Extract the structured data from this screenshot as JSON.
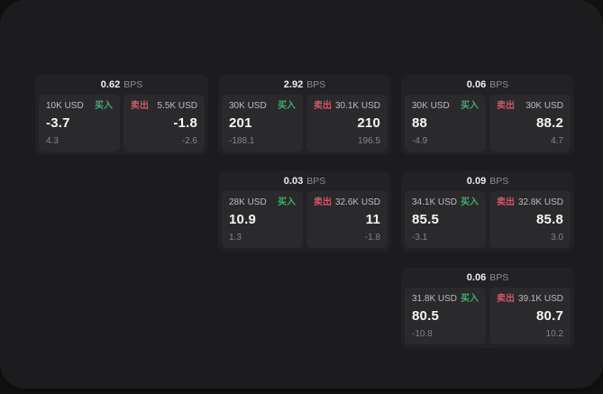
{
  "labels": {
    "bps_unit": "BPS",
    "buy": "买入",
    "sell": "卖出"
  },
  "colors": {
    "buy_accent": "#3fae6e",
    "sell_accent": "#d25667"
  },
  "cards": [
    {
      "bps": "0.62",
      "grid": {
        "row": 1,
        "col": 1
      },
      "buy": {
        "size": "10K USD",
        "price": "-3.7",
        "delta": "4.3"
      },
      "sell": {
        "size": "5.5K USD",
        "price": "-1.8",
        "delta": "-2.6"
      }
    },
    {
      "bps": "2.92",
      "grid": {
        "row": 1,
        "col": 2
      },
      "buy": {
        "size": "30K USD",
        "price": "201",
        "delta": "-188.1"
      },
      "sell": {
        "size": "30.1K USD",
        "price": "210",
        "delta": "196.5"
      }
    },
    {
      "bps": "0.06",
      "grid": {
        "row": 1,
        "col": 3
      },
      "buy": {
        "size": "30K USD",
        "price": "88",
        "delta": "-4.9"
      },
      "sell": {
        "size": "30K USD",
        "price": "88.2",
        "delta": "4.7"
      }
    },
    {
      "bps": "0.03",
      "grid": {
        "row": 2,
        "col": 2
      },
      "buy": {
        "size": "28K USD",
        "price": "10.9",
        "delta": "1.3"
      },
      "sell": {
        "size": "32.6K USD",
        "price": "11",
        "delta": "-1.8"
      }
    },
    {
      "bps": "0.09",
      "grid": {
        "row": 2,
        "col": 3
      },
      "buy": {
        "size": "34.1K USD",
        "price": "85.5",
        "delta": "-3.1"
      },
      "sell": {
        "size": "32.8K USD",
        "price": "85.8",
        "delta": "3.0"
      }
    },
    {
      "bps": "0.06",
      "grid": {
        "row": 3,
        "col": 3
      },
      "buy": {
        "size": "31.8K USD",
        "price": "80.5",
        "delta": "-10.8"
      },
      "sell": {
        "size": "39.1K USD",
        "price": "80.7",
        "delta": "10.2"
      }
    }
  ]
}
